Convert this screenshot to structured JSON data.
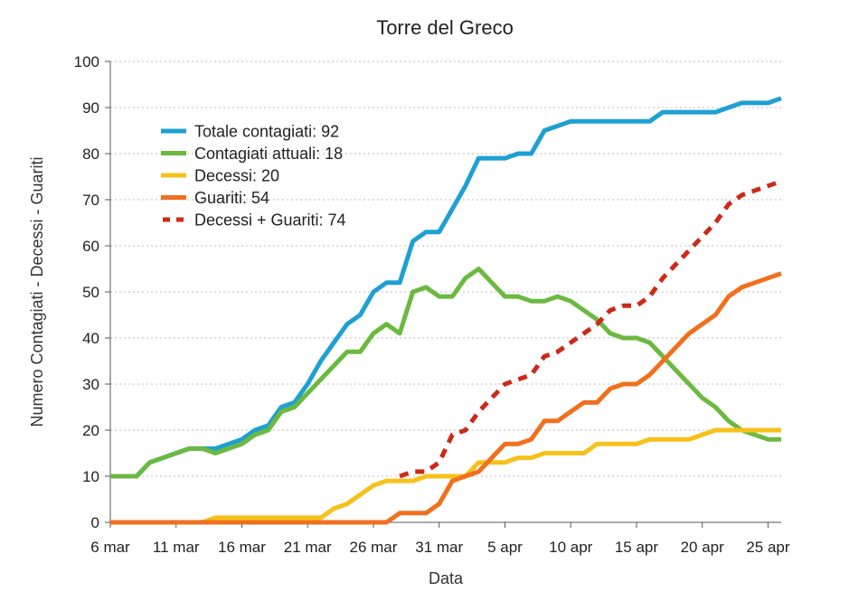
{
  "chart_data": {
    "type": "line",
    "title": "Torre del Greco",
    "xlabel": "Data",
    "ylabel": "Numero Contagiati - Decessi - Guariti",
    "ylim": [
      0,
      100
    ],
    "yticks": [
      0,
      10,
      20,
      30,
      40,
      50,
      60,
      70,
      80,
      90,
      100
    ],
    "x": [
      "6 mar",
      "7 mar",
      "8 mar",
      "9 mar",
      "10 mar",
      "11 mar",
      "12 mar",
      "13 mar",
      "14 mar",
      "15 mar",
      "16 mar",
      "17 mar",
      "18 mar",
      "19 mar",
      "20 mar",
      "21 mar",
      "22 mar",
      "23 mar",
      "24 mar",
      "25 mar",
      "26 mar",
      "27 mar",
      "28 mar",
      "29 mar",
      "30 mar",
      "31 mar",
      "1 apr",
      "2 apr",
      "3 apr",
      "4 apr",
      "5 apr",
      "6 apr",
      "7 apr",
      "8 apr",
      "9 apr",
      "10 apr",
      "11 apr",
      "12 apr",
      "13 apr",
      "14 apr",
      "15 apr",
      "16 apr",
      "17 apr",
      "18 apr",
      "19 apr",
      "20 apr",
      "21 apr",
      "22 apr",
      "23 apr",
      "24 apr",
      "25 apr",
      "26 apr"
    ],
    "xtick_labels": [
      "6 mar",
      "11 mar",
      "16 mar",
      "21 mar",
      "26 mar",
      "31 mar",
      "5 apr",
      "10 apr",
      "15 apr",
      "20 apr",
      "25 apr"
    ],
    "grid": true,
    "legend_position": "top-left",
    "series": [
      {
        "name": "Totale contagiati: 92",
        "color": "#1fa0d2",
        "style": "solid",
        "values": [
          10,
          10,
          10,
          13,
          14,
          15,
          16,
          16,
          16,
          17,
          18,
          20,
          21,
          25,
          26,
          30,
          35,
          39,
          43,
          45,
          50,
          52,
          52,
          61,
          63,
          63,
          68,
          73,
          79,
          79,
          79,
          80,
          80,
          85,
          86,
          87,
          87,
          87,
          87,
          87,
          87,
          87,
          89,
          89,
          89,
          89,
          89,
          90,
          91,
          91,
          91,
          92
        ]
      },
      {
        "name": "Contagiati attuali: 18",
        "color": "#6cb942",
        "style": "solid",
        "values": [
          10,
          10,
          10,
          13,
          14,
          15,
          16,
          16,
          15,
          16,
          17,
          19,
          20,
          24,
          25,
          28,
          31,
          34,
          37,
          37,
          41,
          43,
          41,
          50,
          51,
          49,
          49,
          53,
          55,
          52,
          49,
          49,
          48,
          48,
          49,
          48,
          46,
          44,
          41,
          40,
          40,
          39,
          36,
          33,
          30,
          27,
          25,
          22,
          20,
          19,
          18,
          18
        ]
      },
      {
        "name": "Decessi: 20",
        "color": "#f5c21b",
        "style": "solid",
        "values": [
          0,
          0,
          0,
          0,
          0,
          0,
          0,
          0,
          1,
          1,
          1,
          1,
          1,
          1,
          1,
          1,
          1,
          3,
          4,
          6,
          8,
          9,
          9,
          9,
          10,
          10,
          10,
          10,
          13,
          13,
          13,
          14,
          14,
          15,
          15,
          15,
          15,
          17,
          17,
          17,
          17,
          18,
          18,
          18,
          18,
          19,
          20,
          20,
          20,
          20,
          20,
          20
        ]
      },
      {
        "name": "Guariti: 54",
        "color": "#f0701e",
        "style": "solid",
        "values": [
          0,
          0,
          0,
          0,
          0,
          0,
          0,
          0,
          0,
          0,
          0,
          0,
          0,
          0,
          0,
          0,
          0,
          0,
          0,
          0,
          0,
          0,
          2,
          2,
          2,
          4,
          9,
          10,
          11,
          14,
          17,
          17,
          18,
          22,
          22,
          24,
          26,
          26,
          29,
          30,
          30,
          32,
          35,
          38,
          41,
          43,
          45,
          49,
          51,
          52,
          53,
          54
        ]
      },
      {
        "name": "Decessi + Guariti: 74",
        "color": "#cc2a1a",
        "style": "dashed",
        "values": [
          null,
          null,
          null,
          null,
          null,
          null,
          null,
          null,
          null,
          null,
          null,
          null,
          null,
          null,
          null,
          null,
          null,
          null,
          null,
          null,
          null,
          null,
          10,
          11,
          11,
          13,
          19,
          20,
          24,
          27,
          30,
          31,
          32,
          36,
          37,
          39,
          41,
          43,
          46,
          47,
          47,
          49,
          53,
          56,
          59,
          62,
          65,
          69,
          71,
          72,
          73,
          74
        ]
      }
    ]
  }
}
